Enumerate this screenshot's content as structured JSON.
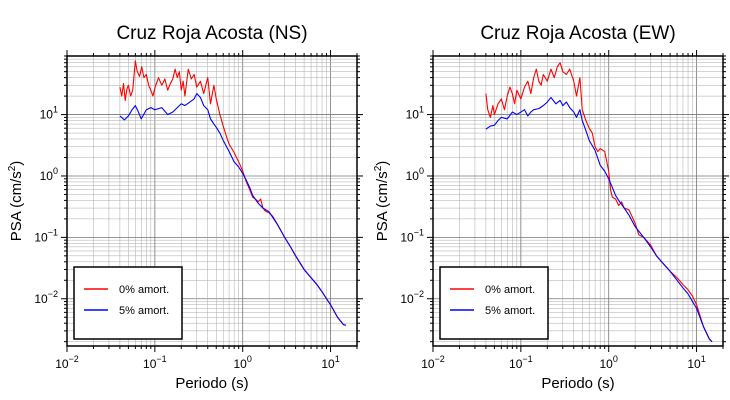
{
  "chart_data": [
    {
      "type": "line",
      "title": "Cruz Roja Acosta (NS)",
      "xlabel": "Periodo (s)",
      "ylabel_base": "PSA (cm/s",
      "ylabel_exp": "2",
      "ylabel_close": ")",
      "xscale": "log",
      "yscale": "log",
      "xlim": [
        0.01,
        20
      ],
      "ylim": [
        0.0017,
        90
      ],
      "grid": true,
      "legend_position": "bottom-left",
      "xticks": [
        {
          "base": "10",
          "exp": "−2",
          "value": 0.01
        },
        {
          "base": "10",
          "exp": "−1",
          "value": 0.1
        },
        {
          "base": "10",
          "exp": "0",
          "value": 1
        },
        {
          "base": "10",
          "exp": "1",
          "value": 10
        }
      ],
      "yticks": [
        {
          "base": "10",
          "exp": "−2",
          "value": 0.01
        },
        {
          "base": "10",
          "exp": "−1",
          "value": 0.1
        },
        {
          "base": "10",
          "exp": "0",
          "value": 1
        },
        {
          "base": "10",
          "exp": "1",
          "value": 10
        }
      ],
      "series": [
        {
          "name": "0% amort.",
          "color": "#ff0000",
          "points": [
            [
              0.04,
              28
            ],
            [
              0.042,
              20
            ],
            [
              0.044,
              32
            ],
            [
              0.046,
              17
            ],
            [
              0.048,
              26
            ],
            [
              0.05,
              30
            ],
            [
              0.053,
              20
            ],
            [
              0.056,
              25
            ],
            [
              0.06,
              75
            ],
            [
              0.063,
              50
            ],
            [
              0.067,
              42
            ],
            [
              0.071,
              60
            ],
            [
              0.075,
              40
            ],
            [
              0.08,
              45
            ],
            [
              0.085,
              30
            ],
            [
              0.09,
              25
            ],
            [
              0.095,
              20
            ],
            [
              0.1,
              27
            ],
            [
              0.11,
              40
            ],
            [
              0.12,
              30
            ],
            [
              0.13,
              38
            ],
            [
              0.14,
              25
            ],
            [
              0.15,
              32
            ],
            [
              0.16,
              38
            ],
            [
              0.17,
              55
            ],
            [
              0.18,
              40
            ],
            [
              0.19,
              50
            ],
            [
              0.2,
              25
            ],
            [
              0.21,
              35
            ],
            [
              0.22,
              20
            ],
            [
              0.24,
              55
            ],
            [
              0.26,
              38
            ],
            [
              0.28,
              45
            ],
            [
              0.3,
              28
            ],
            [
              0.33,
              35
            ],
            [
              0.36,
              22
            ],
            [
              0.4,
              40
            ],
            [
              0.43,
              15
            ],
            [
              0.47,
              30
            ],
            [
              0.5,
              18
            ],
            [
              0.55,
              10
            ],
            [
              0.6,
              6.5
            ],
            [
              0.65,
              4.5
            ],
            [
              0.7,
              3.3
            ],
            [
              0.8,
              2.4
            ],
            [
              0.9,
              1.7
            ],
            [
              1.0,
              1.2
            ],
            [
              1.1,
              0.8
            ],
            [
              1.2,
              0.6
            ],
            [
              1.3,
              0.45
            ],
            [
              1.4,
              0.42
            ],
            [
              1.5,
              0.38
            ],
            [
              1.6,
              0.42
            ],
            [
              1.7,
              0.3
            ],
            [
              1.8,
              0.27
            ],
            [
              2.0,
              0.25
            ],
            [
              2.2,
              0.22
            ],
            [
              2.5,
              0.16
            ],
            [
              3.0,
              0.1
            ],
            [
              3.5,
              0.07
            ],
            [
              4.0,
              0.05
            ],
            [
              5.0,
              0.03
            ],
            [
              6.0,
              0.022
            ],
            [
              7.0,
              0.017
            ],
            [
              8.0,
              0.013
            ],
            [
              9.0,
              0.01
            ],
            [
              10.0,
              0.008
            ],
            [
              12.0,
              0.005
            ],
            [
              14.0,
              0.0038
            ],
            [
              15.0,
              0.0037
            ]
          ]
        },
        {
          "name": "5% amort.",
          "color": "#0000ff",
          "points": [
            [
              0.04,
              9.5
            ],
            [
              0.045,
              8.2
            ],
            [
              0.05,
              9.5
            ],
            [
              0.055,
              12
            ],
            [
              0.06,
              14
            ],
            [
              0.065,
              11
            ],
            [
              0.07,
              8.5
            ],
            [
              0.08,
              12
            ],
            [
              0.09,
              13
            ],
            [
              0.1,
              12
            ],
            [
              0.12,
              13
            ],
            [
              0.14,
              10
            ],
            [
              0.16,
              11
            ],
            [
              0.18,
              13
            ],
            [
              0.2,
              15
            ],
            [
              0.22,
              14
            ],
            [
              0.25,
              16
            ],
            [
              0.28,
              18
            ],
            [
              0.3,
              22
            ],
            [
              0.33,
              19
            ],
            [
              0.36,
              14
            ],
            [
              0.4,
              12
            ],
            [
              0.43,
              8.5
            ],
            [
              0.47,
              7
            ],
            [
              0.5,
              6.2
            ],
            [
              0.55,
              5
            ],
            [
              0.6,
              3.8
            ],
            [
              0.7,
              2.5
            ],
            [
              0.8,
              1.7
            ],
            [
              0.9,
              1.4
            ],
            [
              1.0,
              1.1
            ],
            [
              1.1,
              0.85
            ],
            [
              1.2,
              0.65
            ],
            [
              1.3,
              0.48
            ],
            [
              1.5,
              0.36
            ],
            [
              1.7,
              0.3
            ],
            [
              2.0,
              0.26
            ],
            [
              2.5,
              0.16
            ],
            [
              3.0,
              0.1
            ],
            [
              3.5,
              0.07
            ],
            [
              4.0,
              0.05
            ],
            [
              5.0,
              0.03
            ],
            [
              6.0,
              0.022
            ],
            [
              7.0,
              0.017
            ],
            [
              8.0,
              0.013
            ],
            [
              9.0,
              0.01
            ],
            [
              10.0,
              0.008
            ],
            [
              12.0,
              0.005
            ],
            [
              14.0,
              0.0038
            ],
            [
              15.0,
              0.0037
            ]
          ]
        }
      ]
    },
    {
      "type": "line",
      "title": "Cruz Roja Acosta (EW)",
      "xlabel": "Periodo (s)",
      "ylabel_base": "PSA (cm/s",
      "ylabel_exp": "2",
      "ylabel_close": ")",
      "xscale": "log",
      "yscale": "log",
      "xlim": [
        0.01,
        20
      ],
      "ylim": [
        0.0017,
        90
      ],
      "grid": true,
      "legend_position": "bottom-left",
      "xticks": [
        {
          "base": "10",
          "exp": "−2",
          "value": 0.01
        },
        {
          "base": "10",
          "exp": "−1",
          "value": 0.1
        },
        {
          "base": "10",
          "exp": "0",
          "value": 1
        },
        {
          "base": "10",
          "exp": "1",
          "value": 10
        }
      ],
      "yticks": [
        {
          "base": "10",
          "exp": "−2",
          "value": 0.01
        },
        {
          "base": "10",
          "exp": "−1",
          "value": 0.1
        },
        {
          "base": "10",
          "exp": "0",
          "value": 1
        },
        {
          "base": "10",
          "exp": "1",
          "value": 10
        }
      ],
      "series": [
        {
          "name": "0% amort.",
          "color": "#ff0000",
          "points": [
            [
              0.04,
              22
            ],
            [
              0.042,
              12
            ],
            [
              0.045,
              9
            ],
            [
              0.048,
              14
            ],
            [
              0.05,
              10
            ],
            [
              0.055,
              15
            ],
            [
              0.06,
              18
            ],
            [
              0.065,
              12
            ],
            [
              0.07,
              20
            ],
            [
              0.075,
              28
            ],
            [
              0.08,
              22
            ],
            [
              0.085,
              15
            ],
            [
              0.09,
              25
            ],
            [
              0.1,
              18
            ],
            [
              0.11,
              28
            ],
            [
              0.12,
              35
            ],
            [
              0.13,
              22
            ],
            [
              0.14,
              40
            ],
            [
              0.15,
              55
            ],
            [
              0.16,
              35
            ],
            [
              0.17,
              30
            ],
            [
              0.18,
              45
            ],
            [
              0.2,
              35
            ],
            [
              0.22,
              55
            ],
            [
              0.24,
              40
            ],
            [
              0.26,
              60
            ],
            [
              0.28,
              70
            ],
            [
              0.3,
              50
            ],
            [
              0.33,
              45
            ],
            [
              0.36,
              55
            ],
            [
              0.4,
              35
            ],
            [
              0.43,
              20
            ],
            [
              0.47,
              40
            ],
            [
              0.5,
              12
            ],
            [
              0.55,
              8
            ],
            [
              0.6,
              6
            ],
            [
              0.65,
              5
            ],
            [
              0.7,
              3
            ],
            [
              0.75,
              2.5
            ],
            [
              0.8,
              2.8
            ],
            [
              0.9,
              2.5
            ],
            [
              1.0,
              1.2
            ],
            [
              1.05,
              0.6
            ],
            [
              1.1,
              0.45
            ],
            [
              1.2,
              0.42
            ],
            [
              1.3,
              0.33
            ],
            [
              1.4,
              0.38
            ],
            [
              1.5,
              0.3
            ],
            [
              1.7,
              0.28
            ],
            [
              2.0,
              0.17
            ],
            [
              2.2,
              0.11
            ],
            [
              2.5,
              0.1
            ],
            [
              3.0,
              0.075
            ],
            [
              3.5,
              0.05
            ],
            [
              4.0,
              0.04
            ],
            [
              5.0,
              0.028
            ],
            [
              6.0,
              0.022
            ],
            [
              7.0,
              0.017
            ],
            [
              8.0,
              0.014
            ],
            [
              9.0,
              0.011
            ],
            [
              10.0,
              0.008
            ],
            [
              12.0,
              0.0035
            ],
            [
              14.0,
              0.0022
            ],
            [
              15.0,
              0.002
            ]
          ]
        },
        {
          "name": "5% amort.",
          "color": "#0000ff",
          "points": [
            [
              0.04,
              5.8
            ],
            [
              0.045,
              6.5
            ],
            [
              0.05,
              6.7
            ],
            [
              0.055,
              8
            ],
            [
              0.06,
              9
            ],
            [
              0.07,
              8.5
            ],
            [
              0.08,
              11
            ],
            [
              0.09,
              10
            ],
            [
              0.1,
              11
            ],
            [
              0.11,
              12
            ],
            [
              0.12,
              9.5
            ],
            [
              0.13,
              11
            ],
            [
              0.14,
              12
            ],
            [
              0.16,
              12.5
            ],
            [
              0.18,
              14
            ],
            [
              0.2,
              16
            ],
            [
              0.22,
              19
            ],
            [
              0.25,
              15
            ],
            [
              0.28,
              17
            ],
            [
              0.3,
              14
            ],
            [
              0.33,
              16
            ],
            [
              0.36,
              13
            ],
            [
              0.4,
              11
            ],
            [
              0.43,
              9
            ],
            [
              0.47,
              12
            ],
            [
              0.5,
              8
            ],
            [
              0.55,
              5.5
            ],
            [
              0.6,
              3.8
            ],
            [
              0.7,
              2.6
            ],
            [
              0.8,
              1.5
            ],
            [
              0.9,
              1.2
            ],
            [
              1.0,
              0.9
            ],
            [
              1.1,
              0.65
            ],
            [
              1.2,
              0.48
            ],
            [
              1.3,
              0.4
            ],
            [
              1.5,
              0.3
            ],
            [
              1.7,
              0.23
            ],
            [
              2.0,
              0.15
            ],
            [
              2.5,
              0.1
            ],
            [
              3.0,
              0.07
            ],
            [
              3.5,
              0.05
            ],
            [
              4.0,
              0.04
            ],
            [
              5.0,
              0.028
            ],
            [
              6.0,
              0.02
            ],
            [
              7.0,
              0.015
            ],
            [
              8.0,
              0.012
            ],
            [
              9.0,
              0.009
            ],
            [
              10.0,
              0.007
            ],
            [
              12.0,
              0.0035
            ],
            [
              14.0,
              0.0022
            ],
            [
              15.0,
              0.002
            ]
          ]
        }
      ]
    }
  ]
}
